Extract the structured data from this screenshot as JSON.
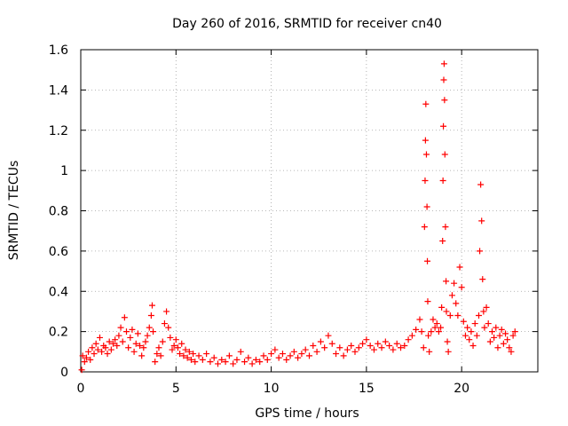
{
  "chart_data": {
    "type": "scatter",
    "title": "Day 260 of 2016, SRMTID for receiver cn40",
    "xlabel": "GPS time / hours",
    "ylabel": "SRMTID / TECUs",
    "xlim": [
      0,
      24
    ],
    "ylim": [
      0,
      1.6
    ],
    "xticks": [
      0,
      5,
      10,
      15,
      20
    ],
    "xtick_labels": [
      "0",
      "5",
      "10",
      "15",
      "20"
    ],
    "yticks": [
      0,
      0.2,
      0.4,
      0.6,
      0.8,
      1,
      1.2,
      1.4,
      1.6
    ],
    "ytick_labels": [
      "0",
      "0.2",
      "0.4",
      "0.6",
      "0.8",
      "1",
      "1.2",
      "1.4",
      "1.6"
    ],
    "grid": true,
    "marker": "plus",
    "color": "#ff0000",
    "series": [
      {
        "name": "SRMTID",
        "points": [
          [
            0.05,
            0.01
          ],
          [
            0.1,
            0.08
          ],
          [
            0.2,
            0.05
          ],
          [
            0.3,
            0.07
          ],
          [
            0.4,
            0.1
          ],
          [
            0.5,
            0.06
          ],
          [
            0.6,
            0.12
          ],
          [
            0.7,
            0.09
          ],
          [
            0.8,
            0.14
          ],
          [
            0.9,
            0.11
          ],
          [
            1.0,
            0.17
          ],
          [
            1.1,
            0.1
          ],
          [
            1.2,
            0.13
          ],
          [
            1.3,
            0.12
          ],
          [
            1.4,
            0.09
          ],
          [
            1.5,
            0.15
          ],
          [
            1.6,
            0.11
          ],
          [
            1.7,
            0.14
          ],
          [
            1.8,
            0.16
          ],
          [
            1.9,
            0.13
          ],
          [
            2.0,
            0.18
          ],
          [
            2.1,
            0.22
          ],
          [
            2.2,
            0.15
          ],
          [
            2.3,
            0.27
          ],
          [
            2.4,
            0.2
          ],
          [
            2.5,
            0.12
          ],
          [
            2.6,
            0.17
          ],
          [
            2.7,
            0.21
          ],
          [
            2.8,
            0.1
          ],
          [
            2.9,
            0.14
          ],
          [
            3.0,
            0.19
          ],
          [
            3.1,
            0.13
          ],
          [
            3.2,
            0.08
          ],
          [
            3.3,
            0.12
          ],
          [
            3.4,
            0.15
          ],
          [
            3.5,
            0.18
          ],
          [
            3.6,
            0.22
          ],
          [
            3.7,
            0.28
          ],
          [
            3.75,
            0.33
          ],
          [
            3.8,
            0.2
          ],
          [
            3.9,
            0.05
          ],
          [
            4.0,
            0.09
          ],
          [
            4.1,
            0.12
          ],
          [
            4.2,
            0.08
          ],
          [
            4.3,
            0.15
          ],
          [
            4.4,
            0.24
          ],
          [
            4.5,
            0.3
          ],
          [
            4.6,
            0.22
          ],
          [
            4.7,
            0.17
          ],
          [
            4.8,
            0.11
          ],
          [
            4.9,
            0.13
          ],
          [
            5.0,
            0.16
          ],
          [
            5.1,
            0.12
          ],
          [
            5.2,
            0.09
          ],
          [
            5.3,
            0.14
          ],
          [
            5.4,
            0.08
          ],
          [
            5.5,
            0.11
          ],
          [
            5.6,
            0.07
          ],
          [
            5.7,
            0.1
          ],
          [
            5.8,
            0.06
          ],
          [
            5.9,
            0.09
          ],
          [
            6.0,
            0.05
          ],
          [
            6.2,
            0.08
          ],
          [
            6.4,
            0.06
          ],
          [
            6.6,
            0.09
          ],
          [
            6.8,
            0.05
          ],
          [
            7.0,
            0.07
          ],
          [
            7.2,
            0.04
          ],
          [
            7.4,
            0.06
          ],
          [
            7.6,
            0.05
          ],
          [
            7.8,
            0.08
          ],
          [
            8.0,
            0.04
          ],
          [
            8.2,
            0.06
          ],
          [
            8.4,
            0.1
          ],
          [
            8.6,
            0.05
          ],
          [
            8.8,
            0.07
          ],
          [
            9.0,
            0.04
          ],
          [
            9.2,
            0.06
          ],
          [
            9.4,
            0.05
          ],
          [
            9.6,
            0.08
          ],
          [
            9.8,
            0.06
          ],
          [
            10.0,
            0.09
          ],
          [
            10.2,
            0.11
          ],
          [
            10.4,
            0.07
          ],
          [
            10.6,
            0.09
          ],
          [
            10.8,
            0.06
          ],
          [
            11.0,
            0.08
          ],
          [
            11.2,
            0.1
          ],
          [
            11.4,
            0.07
          ],
          [
            11.6,
            0.09
          ],
          [
            11.8,
            0.11
          ],
          [
            12.0,
            0.08
          ],
          [
            12.2,
            0.13
          ],
          [
            12.4,
            0.1
          ],
          [
            12.6,
            0.15
          ],
          [
            12.8,
            0.12
          ],
          [
            13.0,
            0.18
          ],
          [
            13.2,
            0.14
          ],
          [
            13.4,
            0.09
          ],
          [
            13.6,
            0.12
          ],
          [
            13.8,
            0.08
          ],
          [
            14.0,
            0.11
          ],
          [
            14.2,
            0.13
          ],
          [
            14.4,
            0.1
          ],
          [
            14.6,
            0.12
          ],
          [
            14.8,
            0.14
          ],
          [
            15.0,
            0.16
          ],
          [
            15.2,
            0.13
          ],
          [
            15.4,
            0.11
          ],
          [
            15.6,
            0.14
          ],
          [
            15.8,
            0.12
          ],
          [
            16.0,
            0.15
          ],
          [
            16.2,
            0.13
          ],
          [
            16.4,
            0.11
          ],
          [
            16.6,
            0.14
          ],
          [
            16.8,
            0.12
          ],
          [
            17.0,
            0.13
          ],
          [
            17.2,
            0.16
          ],
          [
            17.4,
            0.18
          ],
          [
            17.6,
            0.21
          ],
          [
            17.8,
            0.26
          ],
          [
            17.9,
            0.2
          ],
          [
            18.0,
            0.12
          ],
          [
            18.05,
            0.72
          ],
          [
            18.08,
            0.95
          ],
          [
            18.1,
            1.15
          ],
          [
            18.12,
            1.33
          ],
          [
            18.15,
            1.08
          ],
          [
            18.18,
            0.82
          ],
          [
            18.2,
            0.55
          ],
          [
            18.22,
            0.35
          ],
          [
            18.25,
            0.18
          ],
          [
            18.3,
            0.1
          ],
          [
            18.4,
            0.2
          ],
          [
            18.5,
            0.26
          ],
          [
            18.6,
            0.22
          ],
          [
            18.7,
            0.24
          ],
          [
            18.8,
            0.2
          ],
          [
            18.9,
            0.22
          ],
          [
            18.95,
            0.32
          ],
          [
            19.0,
            0.65
          ],
          [
            19.02,
            0.95
          ],
          [
            19.04,
            1.22
          ],
          [
            19.06,
            1.45
          ],
          [
            19.08,
            1.53
          ],
          [
            19.1,
            1.35
          ],
          [
            19.12,
            1.08
          ],
          [
            19.15,
            0.72
          ],
          [
            19.18,
            0.45
          ],
          [
            19.2,
            0.3
          ],
          [
            19.25,
            0.15
          ],
          [
            19.3,
            0.1
          ],
          [
            19.4,
            0.28
          ],
          [
            19.5,
            0.38
          ],
          [
            19.6,
            0.44
          ],
          [
            19.7,
            0.34
          ],
          [
            19.8,
            0.28
          ],
          [
            19.9,
            0.52
          ],
          [
            20.0,
            0.42
          ],
          [
            20.1,
            0.25
          ],
          [
            20.2,
            0.18
          ],
          [
            20.3,
            0.22
          ],
          [
            20.4,
            0.16
          ],
          [
            20.5,
            0.2
          ],
          [
            20.6,
            0.13
          ],
          [
            20.7,
            0.24
          ],
          [
            20.8,
            0.18
          ],
          [
            20.9,
            0.28
          ],
          [
            20.95,
            0.6
          ],
          [
            21.0,
            0.93
          ],
          [
            21.05,
            0.75
          ],
          [
            21.1,
            0.46
          ],
          [
            21.15,
            0.3
          ],
          [
            21.2,
            0.22
          ],
          [
            21.3,
            0.32
          ],
          [
            21.4,
            0.24
          ],
          [
            21.5,
            0.15
          ],
          [
            21.6,
            0.2
          ],
          [
            21.7,
            0.17
          ],
          [
            21.8,
            0.22
          ],
          [
            21.9,
            0.12
          ],
          [
            22.0,
            0.18
          ],
          [
            22.1,
            0.21
          ],
          [
            22.2,
            0.14
          ],
          [
            22.3,
            0.19
          ],
          [
            22.4,
            0.16
          ],
          [
            22.5,
            0.12
          ],
          [
            22.6,
            0.1
          ],
          [
            22.7,
            0.18
          ],
          [
            22.8,
            0.2
          ]
        ]
      }
    ]
  }
}
